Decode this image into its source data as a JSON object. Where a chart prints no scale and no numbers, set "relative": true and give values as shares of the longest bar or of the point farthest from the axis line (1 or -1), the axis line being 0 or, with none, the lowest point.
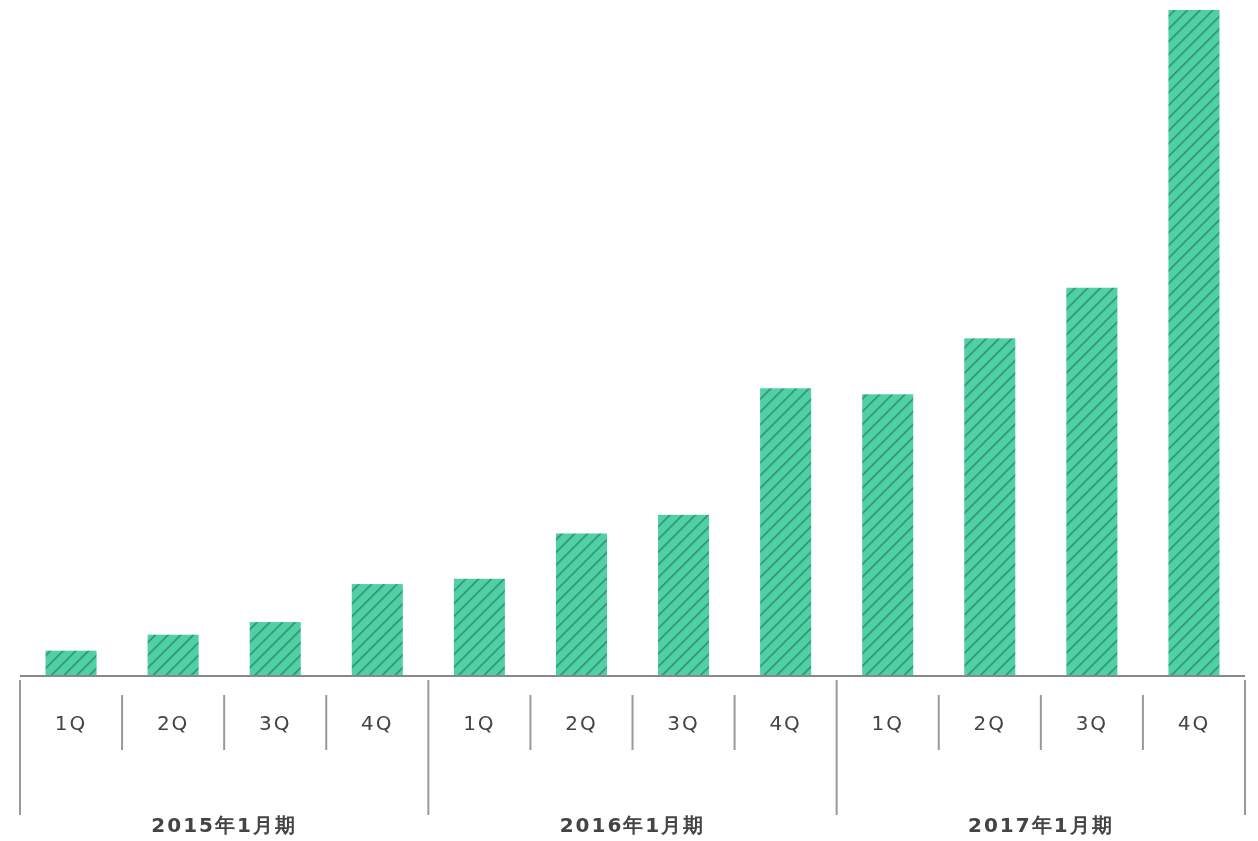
{
  "chart_data": {
    "type": "bar",
    "relative": true,
    "categories": [
      "1Q",
      "2Q",
      "3Q",
      "4Q",
      "1Q",
      "2Q",
      "3Q",
      "4Q",
      "1Q",
      "2Q",
      "3Q",
      "4Q"
    ],
    "values": [
      0.038,
      0.062,
      0.081,
      0.138,
      0.146,
      0.214,
      0.242,
      0.432,
      0.423,
      0.507,
      0.583,
      1
    ],
    "color": "#4fd1a5",
    "annotations": [
      "2015年1月期",
      "2016年1月期",
      "2017年1月期"
    ]
  }
}
